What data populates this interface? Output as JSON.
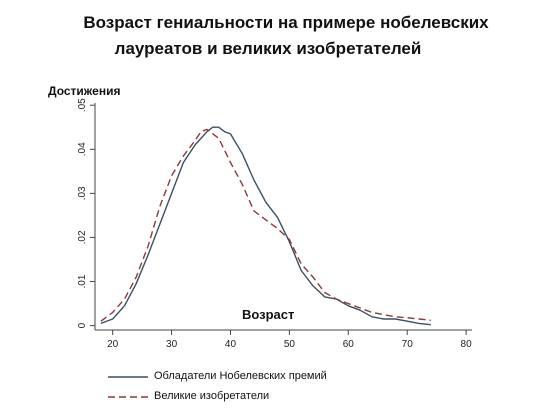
{
  "chart_data": {
    "type": "line",
    "title_line1": "Возраст гениальности на примере нобелевских",
    "title_line2": "лауреатов и великих изобретателей",
    "ylabel": "Достижения",
    "xlabel": "Возраст",
    "xlim": [
      17,
      81
    ],
    "ylim": [
      -0.001,
      0.0505
    ],
    "x_ticks": [
      20,
      30,
      40,
      50,
      60,
      70,
      80
    ],
    "y_ticks": [
      0,
      0.01,
      0.02,
      0.03,
      0.04,
      0.05
    ],
    "y_tick_labels": [
      "0",
      ".01",
      ".02",
      ".03",
      ".04",
      ".05"
    ],
    "legend_position": "bottom",
    "series": [
      {
        "name": "Обладатели Нобелевских премий",
        "color": "#3b5063",
        "dash": "solid",
        "x": [
          18,
          20,
          22,
          24,
          26,
          28,
          30,
          32,
          34,
          36,
          37,
          38,
          39,
          40,
          42,
          44,
          46,
          48,
          50,
          52,
          54,
          56,
          58,
          60,
          62,
          64,
          66,
          68,
          70,
          72,
          74
        ],
        "y": [
          0.0005,
          0.0015,
          0.0045,
          0.0095,
          0.016,
          0.023,
          0.03,
          0.037,
          0.041,
          0.044,
          0.045,
          0.045,
          0.044,
          0.0435,
          0.039,
          0.033,
          0.028,
          0.0245,
          0.019,
          0.0125,
          0.009,
          0.0065,
          0.006,
          0.0045,
          0.0035,
          0.002,
          0.0015,
          0.0015,
          0.001,
          0.0005,
          0.0002
        ]
      },
      {
        "name": "Великие изобретатели",
        "color": "#8a3a3a",
        "dash": "dashed",
        "x": [
          18,
          20,
          22,
          24,
          26,
          28,
          30,
          32,
          34,
          35,
          36,
          38,
          40,
          42,
          44,
          46,
          48,
          50,
          52,
          54,
          56,
          58,
          60,
          62,
          64,
          66,
          68,
          70,
          72,
          74
        ],
        "y": [
          0.001,
          0.003,
          0.006,
          0.011,
          0.018,
          0.027,
          0.034,
          0.0385,
          0.042,
          0.044,
          0.0445,
          0.0425,
          0.037,
          0.032,
          0.026,
          0.024,
          0.022,
          0.0195,
          0.014,
          0.011,
          0.0075,
          0.006,
          0.005,
          0.004,
          0.003,
          0.0025,
          0.002,
          0.0018,
          0.0015,
          0.0012
        ]
      }
    ]
  }
}
